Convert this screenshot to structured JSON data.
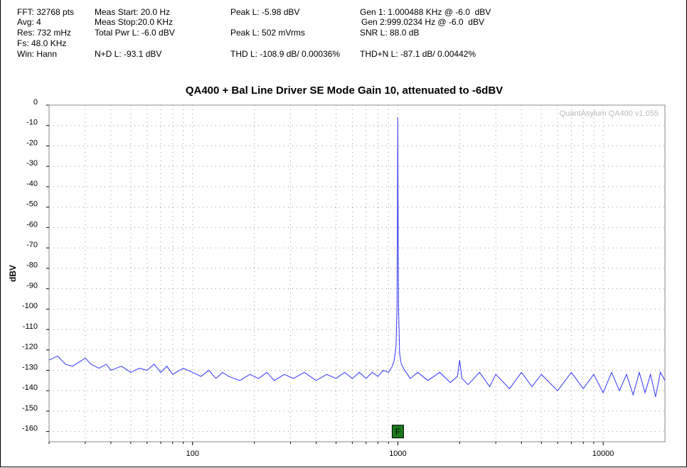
{
  "header": [
    "FFT: 32768 pts",
    "Avg: 4",
    "Res: 732 mHz",
    "Fs: 48.0 KHz",
    "Win: Hann",
    "Meas Start: 20.0 Hz",
    "Meas Stop:20.0 KHz",
    "Total Pwr L: -6.0 dBV",
    "N+D L: -93.1 dBV",
    "Peak L: -5.98 dBV",
    "Peak L: 502 mVrms",
    "THD L: -108.9 dB/ 0.00036%",
    "Gen 1: 1.000488 KHz @ -6.0  dBV",
    "Gen 2:999.0234 Hz @ -6.0  dBV",
    "SNR L: 88.0 dB",
    "THD+N L: -87.1 dB/ 0.00442%"
  ],
  "chart_data": {
    "type": "line",
    "title": "QA400 + Bal Line Driver SE Mode Gain 10, attenuated to -6dBV",
    "y_label": "dBV",
    "watermark": "QuantAsylum QA400 v1.055",
    "log_x": true,
    "grid": true,
    "xlim": [
      20,
      20000
    ],
    "ylim": [
      -165,
      0
    ],
    "xticks": [
      100,
      1000,
      10000
    ],
    "xminorticks": [
      20,
      30,
      40,
      50,
      60,
      70,
      80,
      90,
      200,
      300,
      400,
      500,
      600,
      700,
      800,
      900,
      2000,
      3000,
      4000,
      5000,
      6000,
      7000,
      8000,
      9000
    ],
    "yticks": [
      0,
      -10,
      -20,
      -30,
      -40,
      -50,
      -60,
      -70,
      -80,
      -90,
      -100,
      -110,
      -120,
      -130,
      -140,
      -150,
      -160
    ],
    "x": [
      20,
      22,
      24,
      26,
      28,
      30,
      32,
      35,
      38,
      40,
      45,
      50,
      55,
      60,
      65,
      70,
      75,
      80,
      90,
      100,
      110,
      120,
      130,
      140,
      150,
      170,
      190,
      210,
      230,
      250,
      280,
      310,
      350,
      400,
      450,
      500,
      550,
      600,
      650,
      700,
      750,
      800,
      850,
      900,
      940,
      960,
      980,
      990,
      995,
      999,
      1003,
      1008,
      1020,
      1040,
      1080,
      1150,
      1250,
      1400,
      1600,
      1800,
      1950,
      2000,
      2050,
      2200,
      2500,
      2800,
      3000,
      3500,
      4000,
      4500,
      5000,
      6000,
      7000,
      8000,
      9000,
      10000,
      11000,
      12000,
      13000,
      14000,
      15000,
      16000,
      17000,
      18000,
      19000,
      20000
    ],
    "series": [
      {
        "name": "L",
        "color": "#3333ff",
        "values": [
          -125,
          -123,
          -127,
          -128,
          -126,
          -124,
          -127,
          -129,
          -127,
          -130,
          -128,
          -131,
          -129,
          -130,
          -127,
          -131,
          -128,
          -132,
          -129,
          -131,
          -133,
          -130,
          -134,
          -131,
          -133,
          -135,
          -132,
          -134,
          -131,
          -135,
          -132,
          -134,
          -131,
          -135,
          -132,
          -134,
          -131,
          -134,
          -131,
          -134,
          -131,
          -133,
          -130,
          -131,
          -128,
          -125,
          -118,
          -100,
          -60,
          -6,
          -60,
          -100,
          -122,
          -127,
          -130,
          -134,
          -131,
          -135,
          -131,
          -136,
          -133,
          -125,
          -134,
          -137,
          -131,
          -138,
          -132,
          -139,
          -131,
          -138,
          -132,
          -140,
          -131,
          -139,
          -132,
          -141,
          -131,
          -140,
          -132,
          -142,
          -131,
          -141,
          -132,
          -143,
          -131,
          -135
        ]
      }
    ],
    "marker": {
      "label": "F",
      "x": 1000,
      "y": -160
    }
  }
}
